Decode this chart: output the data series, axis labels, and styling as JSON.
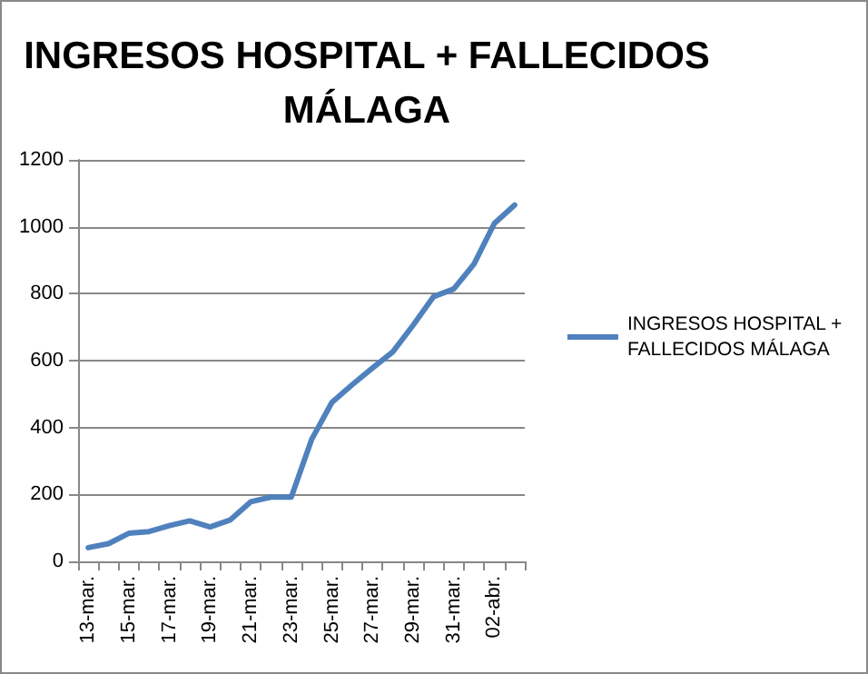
{
  "chart_data": {
    "type": "line",
    "title": "INGRESOS HOSPITAL + FALLECIDOS\nMÁLAGA",
    "categories": [
      "13-mar.",
      null,
      "15-mar.",
      null,
      "17-mar.",
      null,
      "19-mar.",
      null,
      "21-mar.",
      null,
      "23-mar.",
      null,
      "25-mar.",
      null,
      "27-mar.",
      null,
      "29-mar.",
      null,
      "31-mar.",
      null,
      "02-abr.",
      null
    ],
    "series": [
      {
        "name": "INGRESOS HOSPITAL +\nFALLECIDOS MÁLAGA",
        "color": "#4f81bd",
        "values": [
          41,
          53,
          84,
          89,
          107,
          121,
          103,
          124,
          178,
          192,
          192,
          364,
          475,
          528,
          578,
          626,
          706,
          791,
          814,
          889,
          1010,
          1065
        ]
      }
    ],
    "ylim": [
      0,
      1200
    ],
    "yticks": [
      0,
      200,
      400,
      600,
      800,
      1000,
      1200
    ],
    "grid": "y",
    "legend": "right",
    "marker": "none",
    "line_style": "solid"
  }
}
